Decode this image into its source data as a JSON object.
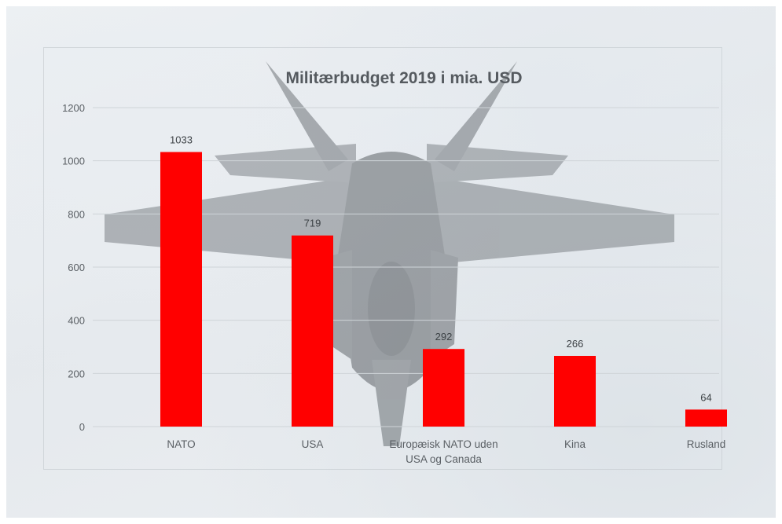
{
  "chart_data": {
    "type": "bar",
    "title": "Militærbudget 2019 i mia. USD",
    "categories": [
      "NATO",
      "USA",
      "Europæisk NATO uden USA og Canada",
      "Kina",
      "Rusland"
    ],
    "category_lines": [
      [
        "NATO"
      ],
      [
        "USA"
      ],
      [
        "Europæisk NATO uden",
        "USA og Canada"
      ],
      [
        "Kina"
      ],
      [
        "Rusland"
      ]
    ],
    "values": [
      1033,
      719,
      292,
      266,
      64
    ],
    "ylim": [
      0,
      1200
    ],
    "yticks": [
      0,
      200,
      400,
      600,
      800,
      1000,
      1200
    ],
    "xlabel": "",
    "ylabel": "",
    "grid": true,
    "data_labels": true,
    "bar_color": "#ff0000",
    "background": "photo of a fighter jet above farmland, faded"
  }
}
